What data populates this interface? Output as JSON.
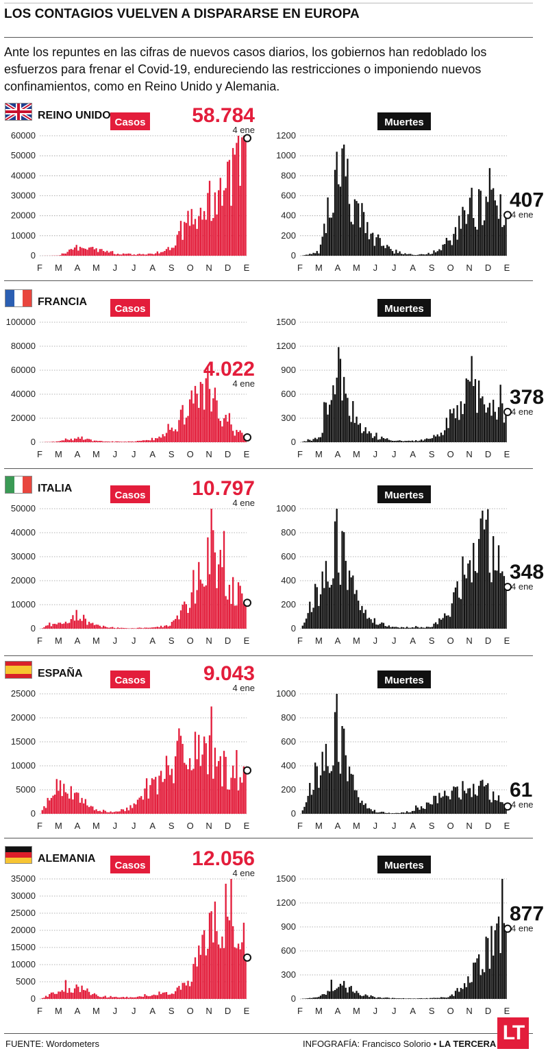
{
  "title": "LOS CONTAGIOS VUELVEN A DISPARARSE EN EUROPA",
  "intro": "Ante los repuntes en las cifras de nuevos casos diarios, los gobiernos han redoblado los esfuerzos para frenar el Covid-19, endureciendo las restricciones o imponiendo nuevos confinamientos, como en Reino Unido y Alemania.",
  "colors": {
    "cases": "#e31d3b",
    "deaths": "#111111",
    "rule": "#555555"
  },
  "months": [
    "F",
    "M",
    "A",
    "M",
    "J",
    "J",
    "A",
    "S",
    "O",
    "N",
    "D",
    "E"
  ],
  "cases_label": "Casos",
  "deaths_label": "Muertes",
  "date_label": "4 ene",
  "footer": {
    "source": "FUENTE: Wordometers",
    "credit_prefix": "INFOGRAFÍA: Francisco Solorio",
    "bullet": "•",
    "credit_brand": "LA TERCERA",
    "logo": "LT"
  },
  "countries": [
    {
      "name": "REINO UNIDO",
      "flag": "uk",
      "cases": {
        "latest_label": "58.784",
        "latest": 58784,
        "ylim": [
          0,
          60000
        ],
        "ticks": [
          "60000",
          "50000",
          "40000",
          "30000",
          "20000",
          "10000",
          "0"
        ],
        "tick_values": [
          60000,
          50000,
          40000,
          30000,
          20000,
          10000,
          0
        ],
        "peak": 58784,
        "pos_num": "top"
      },
      "deaths": {
        "latest_label": "407",
        "latest": 407,
        "ylim": [
          0,
          1200
        ],
        "ticks": [
          "1200",
          "1000",
          "800",
          "600",
          "400",
          "200",
          "0"
        ],
        "tick_values": [
          1200,
          1000,
          800,
          600,
          400,
          200,
          0
        ]
      }
    },
    {
      "name": "FRANCIA",
      "flag": "fr",
      "cases": {
        "latest_label": "4.022",
        "latest": 4022,
        "ylim": [
          0,
          100000
        ],
        "ticks": [
          "100000",
          "80000",
          "60000",
          "40000",
          "20000",
          "0"
        ],
        "tick_values": [
          100000,
          80000,
          60000,
          40000,
          20000,
          0
        ],
        "pos_num": "mid"
      },
      "deaths": {
        "latest_label": "378",
        "latest": 378,
        "ylim": [
          0,
          1500
        ],
        "ticks": [
          "1500",
          "1200",
          "900",
          "600",
          "300",
          "0"
        ],
        "tick_values": [
          1500,
          1200,
          900,
          600,
          300,
          0
        ]
      }
    },
    {
      "name": "ITALIA",
      "flag": "it",
      "cases": {
        "latest_label": "10.797",
        "latest": 10797,
        "ylim": [
          0,
          50000
        ],
        "ticks": [
          "50000",
          "40000",
          "30000",
          "20000",
          "10000",
          "0"
        ],
        "tick_values": [
          50000,
          40000,
          30000,
          20000,
          10000,
          0
        ],
        "pos_num": "top"
      },
      "deaths": {
        "latest_label": "348",
        "latest": 348,
        "ylim": [
          0,
          1000
        ],
        "ticks": [
          "1000",
          "800",
          "600",
          "400",
          "200",
          "0"
        ],
        "tick_values": [
          1000,
          800,
          600,
          400,
          200,
          0
        ]
      }
    },
    {
      "name": "ESPAÑA",
      "flag": "es",
      "cases": {
        "latest_label": "9.043",
        "latest": 9043,
        "ylim": [
          0,
          25000
        ],
        "ticks": [
          "25000",
          "20000",
          "15000",
          "10000",
          "5000",
          "0"
        ],
        "tick_values": [
          25000,
          20000,
          15000,
          10000,
          5000,
          0
        ],
        "pos_num": "top"
      },
      "deaths": {
        "latest_label": "61",
        "latest": 61,
        "ylim": [
          0,
          1000
        ],
        "ticks": [
          "1000",
          "800",
          "600",
          "400",
          "200",
          "0"
        ],
        "tick_values": [
          1000,
          800,
          600,
          400,
          200,
          0
        ]
      }
    },
    {
      "name": "ALEMANIA",
      "flag": "de",
      "cases": {
        "latest_label": "12.056",
        "latest": 12056,
        "ylim": [
          0,
          35000
        ],
        "ticks": [
          "35000",
          "30000",
          "25000",
          "20000",
          "15000",
          "10000",
          "5000",
          "0"
        ],
        "tick_values": [
          35000,
          30000,
          25000,
          20000,
          15000,
          10000,
          5000,
          0
        ],
        "pos_num": "top"
      },
      "deaths": {
        "latest_label": "877",
        "latest": 877,
        "ylim": [
          0,
          1500
        ],
        "ticks": [
          "1500",
          "1200",
          "900",
          "600",
          "300",
          "0"
        ],
        "tick_values": [
          1500,
          1200,
          900,
          600,
          300,
          0
        ]
      }
    }
  ],
  "chart_data": [
    {
      "type": "bar",
      "title": "REINO UNIDO — Casos",
      "x": [
        "F",
        "M",
        "A",
        "M",
        "J",
        "J",
        "A",
        "S",
        "O",
        "N",
        "D",
        "E"
      ],
      "values": [
        0,
        100,
        4500,
        3000,
        1200,
        650,
        900,
        3500,
        17000,
        22000,
        35000,
        58784
      ],
      "ylim": [
        0,
        60000
      ]
    },
    {
      "type": "bar",
      "title": "REINO UNIDO — Muertes",
      "x": [
        "F",
        "M",
        "A",
        "M",
        "J",
        "J",
        "A",
        "S",
        "O",
        "N",
        "D",
        "E"
      ],
      "values": [
        0,
        30,
        950,
        450,
        150,
        40,
        10,
        15,
        130,
        450,
        500,
        407
      ],
      "ylim": [
        0,
        1200
      ]
    },
    {
      "type": "bar",
      "title": "FRANCIA — Casos",
      "x": [
        "F",
        "M",
        "A",
        "M",
        "J",
        "J",
        "A",
        "S",
        "O",
        "N",
        "D",
        "E"
      ],
      "values": [
        0,
        600,
        3500,
        1000,
        400,
        500,
        2000,
        9000,
        30000,
        45000,
        14000,
        4022
      ],
      "ylim": [
        0,
        100000
      ]
    },
    {
      "type": "bar",
      "title": "FRANCIA — Muertes",
      "x": [
        "F",
        "M",
        "A",
        "M",
        "J",
        "J",
        "A",
        "S",
        "O",
        "N",
        "D",
        "E"
      ],
      "values": [
        0,
        50,
        900,
        250,
        60,
        20,
        15,
        40,
        200,
        700,
        400,
        378
      ],
      "ylim": [
        0,
        1500
      ]
    },
    {
      "type": "bar",
      "title": "ITALIA — Casos",
      "x": [
        "F",
        "M",
        "A",
        "M",
        "J",
        "J",
        "A",
        "S",
        "O",
        "N",
        "D",
        "E"
      ],
      "values": [
        0,
        3000,
        4500,
        1300,
        300,
        200,
        400,
        1500,
        12000,
        33000,
        18000,
        10797
      ],
      "ylim": [
        0,
        50000
      ]
    },
    {
      "type": "bar",
      "title": "ITALIA — Muertes",
      "x": [
        "F",
        "M",
        "A",
        "M",
        "J",
        "J",
        "A",
        "S",
        "O",
        "N",
        "D",
        "E"
      ],
      "values": [
        0,
        350,
        700,
        250,
        60,
        15,
        10,
        15,
        120,
        650,
        700,
        348
      ],
      "ylim": [
        0,
        1000
      ]
    },
    {
      "type": "bar",
      "title": "ESPAÑA — Casos",
      "x": [
        "F",
        "M",
        "A",
        "M",
        "J",
        "J",
        "A",
        "S",
        "O",
        "N",
        "D",
        "E"
      ],
      "values": [
        0,
        6000,
        3500,
        700,
        300,
        1500,
        5500,
        10000,
        14000,
        14000,
        8500,
        9043
      ],
      "ylim": [
        0,
        25000
      ]
    },
    {
      "type": "bar",
      "title": "ESPAÑA — Muertes",
      "x": [
        "F",
        "M",
        "A",
        "M",
        "J",
        "J",
        "A",
        "S",
        "O",
        "N",
        "D",
        "E"
      ],
      "values": [
        0,
        400,
        650,
        150,
        20,
        5,
        20,
        100,
        150,
        250,
        180,
        61
      ],
      "ylim": [
        0,
        1000
      ]
    },
    {
      "type": "bar",
      "title": "ALEMANIA — Casos",
      "x": [
        "F",
        "M",
        "A",
        "M",
        "J",
        "J",
        "A",
        "S",
        "O",
        "N",
        "D",
        "E"
      ],
      "values": [
        0,
        2500,
        3500,
        1000,
        450,
        450,
        1000,
        1500,
        5000,
        18000,
        24000,
        12056
      ],
      "ylim": [
        0,
        35000
      ]
    },
    {
      "type": "bar",
      "title": "ALEMANIA — Muertes",
      "x": [
        "F",
        "M",
        "A",
        "M",
        "J",
        "J",
        "A",
        "S",
        "O",
        "N",
        "D",
        "E"
      ],
      "values": [
        0,
        20,
        200,
        80,
        20,
        8,
        5,
        8,
        30,
        200,
        650,
        877
      ],
      "ylim": [
        0,
        1500
      ]
    }
  ]
}
